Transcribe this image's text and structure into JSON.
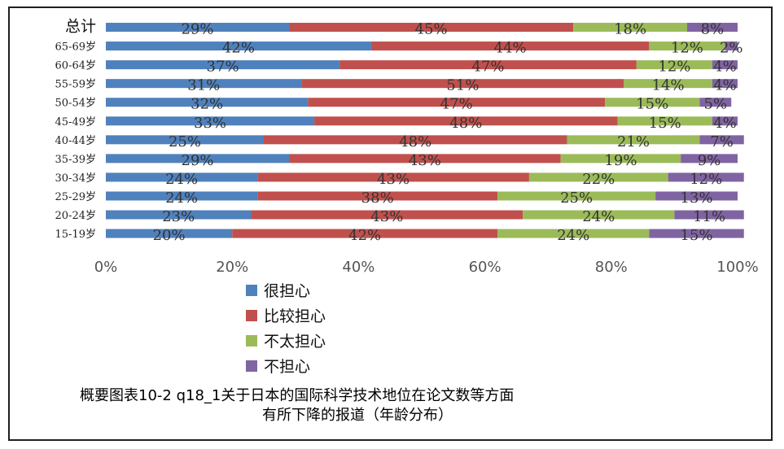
{
  "chart_data": {
    "type": "bar",
    "orientation": "horizontal",
    "stacked": true,
    "normalized": true,
    "categories": [
      "总计",
      "65-69岁",
      "60-64岁",
      "55-59岁",
      "50-54岁",
      "45-49岁",
      "40-44岁",
      "35-39岁",
      "30-34岁",
      "25-29岁",
      "20-24岁",
      "15-19岁"
    ],
    "series": [
      {
        "name": "很担心",
        "color": "#4f81bd",
        "values": [
          29,
          42,
          37,
          31,
          32,
          33,
          25,
          29,
          24,
          24,
          23,
          20
        ]
      },
      {
        "name": "比较担心",
        "color": "#c0504d",
        "values": [
          45,
          44,
          47,
          51,
          47,
          48,
          48,
          43,
          43,
          38,
          43,
          42
        ]
      },
      {
        "name": "不太担心",
        "color": "#9bbb59",
        "values": [
          18,
          12,
          12,
          14,
          15,
          15,
          21,
          19,
          22,
          25,
          24,
          24
        ]
      },
      {
        "name": "不担心",
        "color": "#8064a2",
        "values": [
          8,
          2,
          4,
          4,
          5,
          4,
          7,
          9,
          12,
          13,
          11,
          15
        ]
      }
    ],
    "data_labels": [
      [
        "29%",
        "42%",
        "37%",
        "31%",
        "32%",
        "33%",
        "25%",
        "29%",
        "24%",
        "24%",
        "23%",
        "20%"
      ],
      [
        "45%",
        "44%",
        "47%",
        "51%",
        "47%",
        "48%",
        "48%",
        "43%",
        "43%",
        "38%",
        "43%",
        "42%"
      ],
      [
        "18%",
        "12%",
        "12%",
        "14%",
        "15%",
        "15%",
        "21%",
        "19%",
        "22%",
        "25%",
        "24%",
        "24%"
      ],
      [
        "8%",
        "2%",
        "4%",
        "4%",
        "5%",
        "4%",
        "7%",
        "9%",
        "12%",
        "13%",
        "11%",
        "15%"
      ]
    ],
    "xlim": [
      0,
      100
    ],
    "x_ticks": [
      "0%",
      "20%",
      "40%",
      "60%",
      "80%",
      "100%"
    ],
    "grid": false,
    "legend_position": "bottom-left",
    "caption_line1": "概要图表10-2 q18_1关于日本的国际科学技术地位在论文数等方面",
    "caption_line2": "有所下降的报道（年龄分布）"
  }
}
